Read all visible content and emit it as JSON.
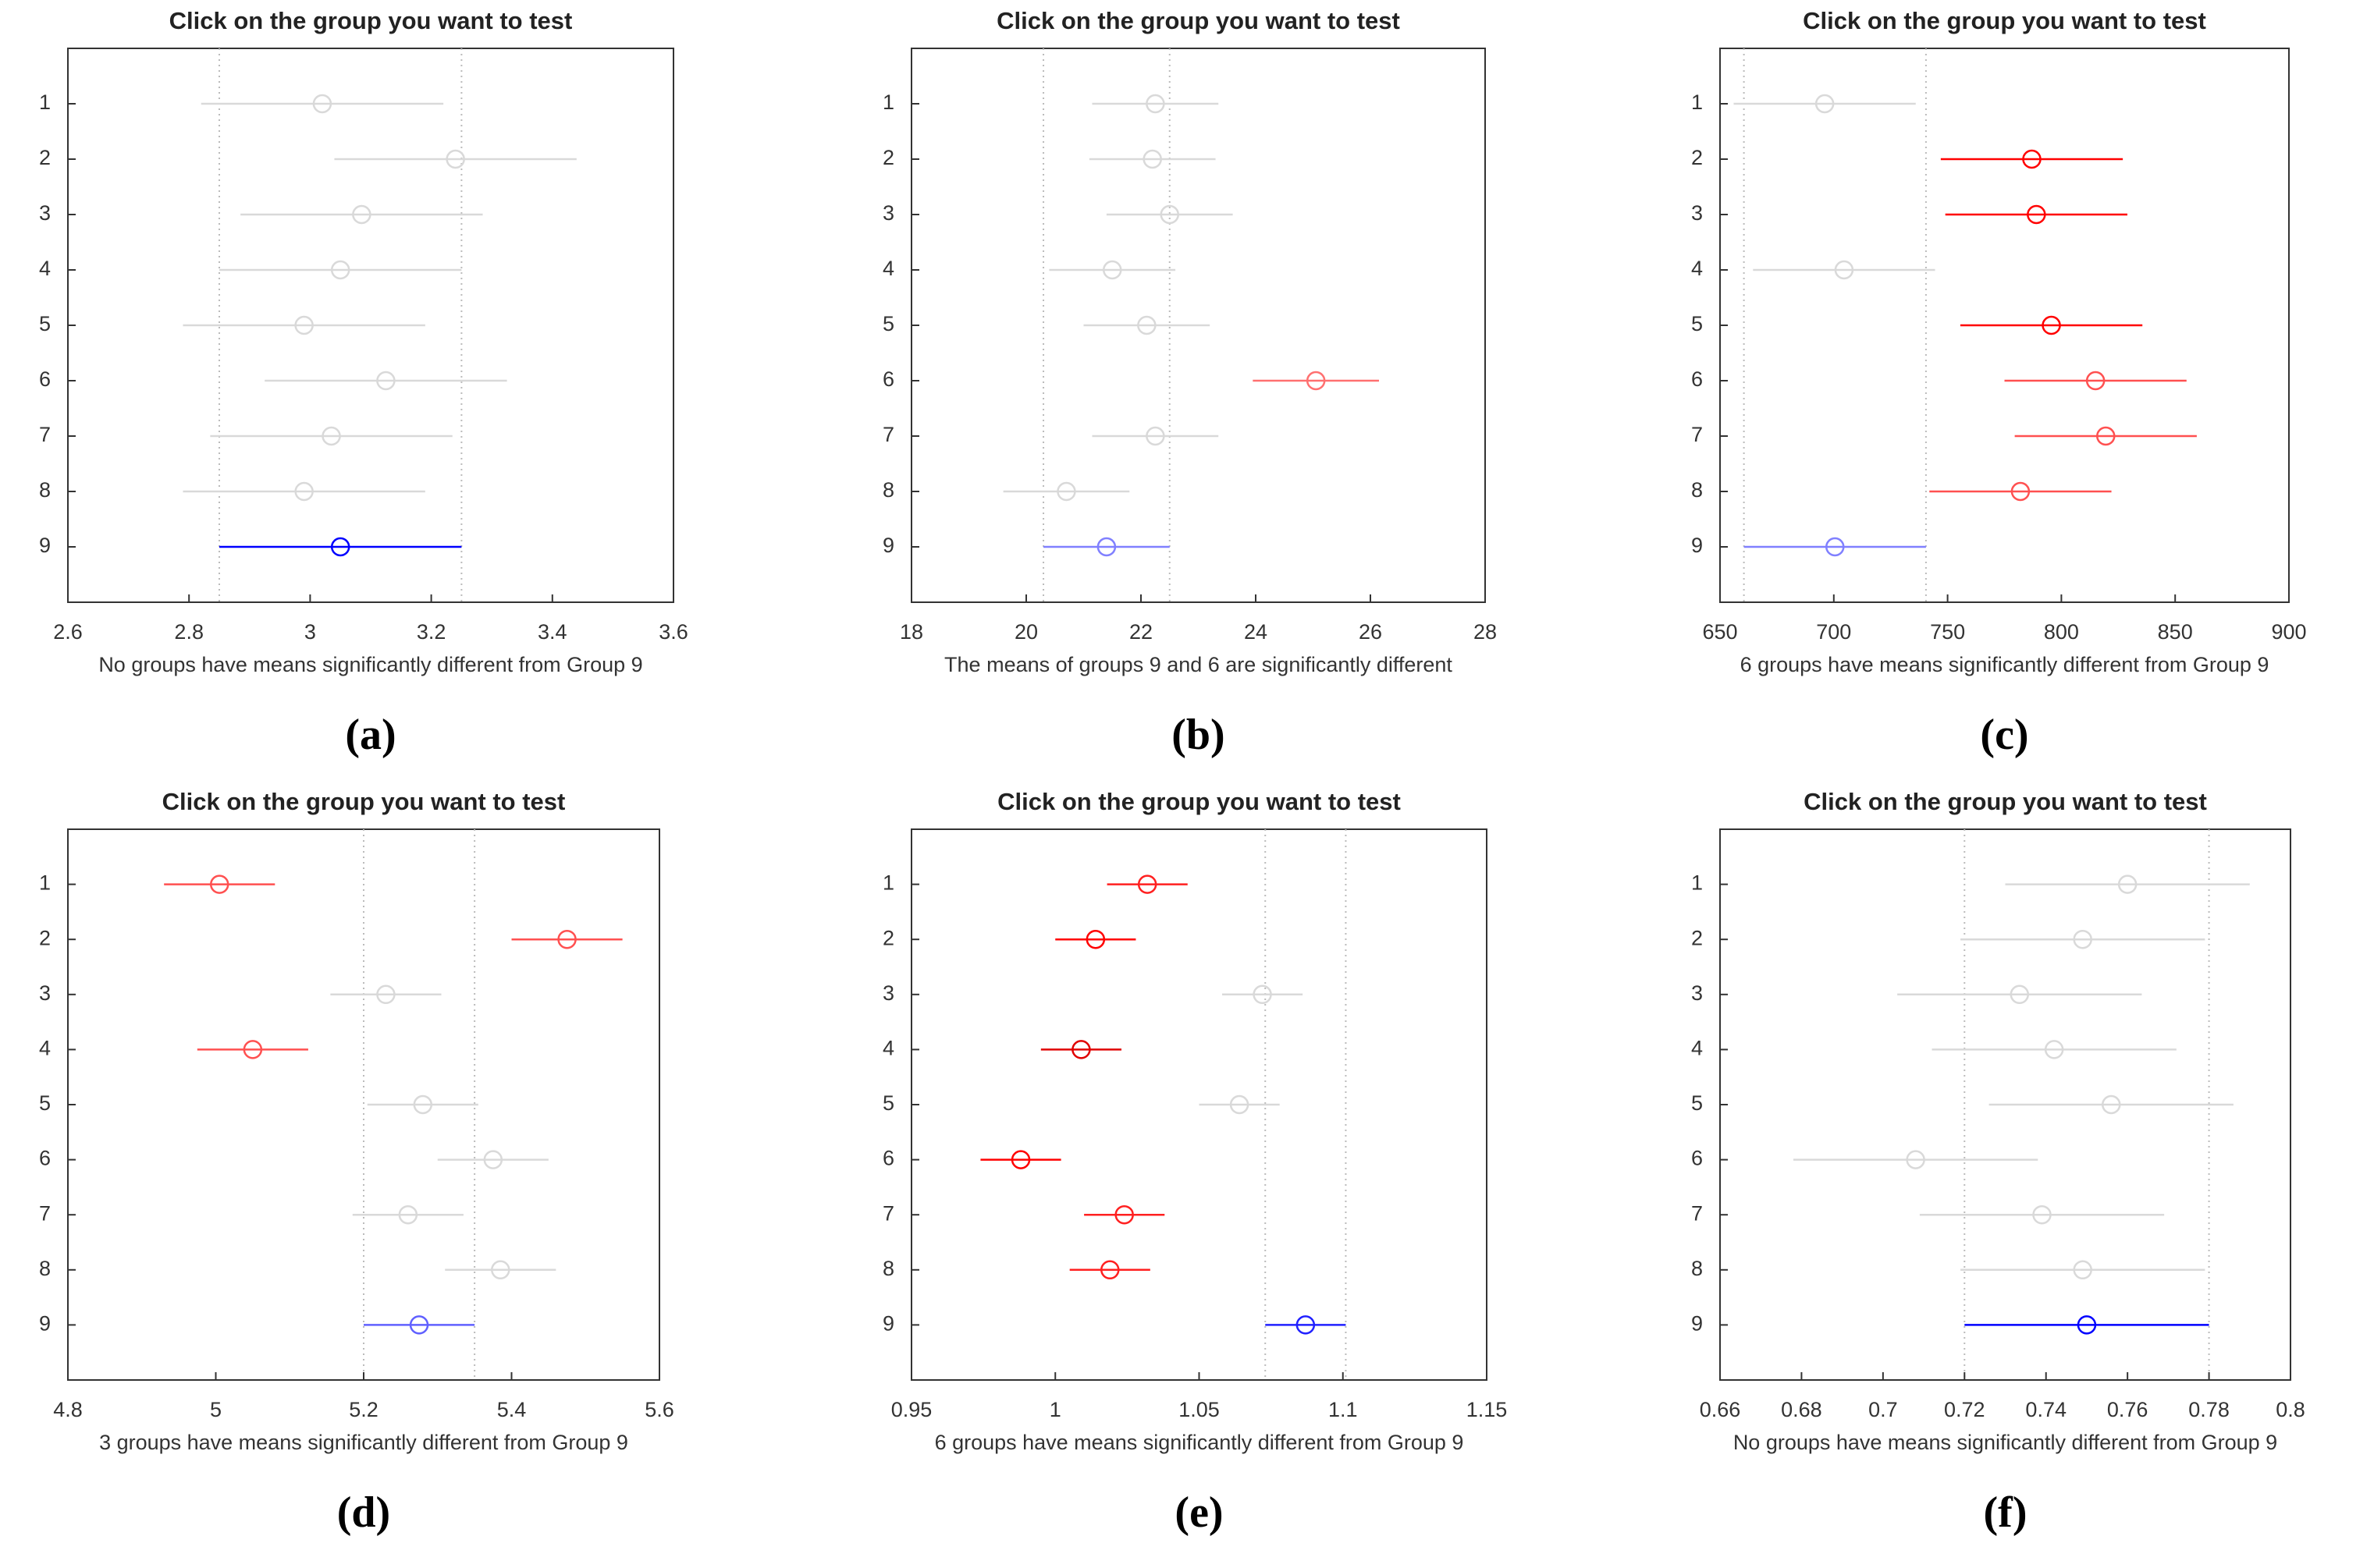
{
  "chart_data": [
    {
      "type": "interval",
      "title": "Click on the group you want to test",
      "xlabel": "No groups have means significantly different from Group 9",
      "label": "(a)",
      "categories": [
        "1",
        "2",
        "3",
        "4",
        "5",
        "6",
        "7",
        "8",
        "9"
      ],
      "values": [
        3.02,
        3.24,
        3.085,
        3.05,
        2.99,
        3.125,
        3.035,
        2.99,
        3.05
      ],
      "errors": [
        0.2,
        0.2,
        0.2,
        0.2,
        0.2,
        0.2,
        0.2,
        0.2,
        0.2
      ],
      "colors": [
        "#d9d9d9",
        "#d9d9d9",
        "#d9d9d9",
        "#d9d9d9",
        "#d9d9d9",
        "#d9d9d9",
        "#d9d9d9",
        "#d9d9d9",
        "#0000ff"
      ],
      "xlim": [
        2.6,
        3.6
      ],
      "xticks": [
        2.6,
        2.8,
        3,
        3.2,
        3.4,
        3.6
      ]
    },
    {
      "type": "interval",
      "title": "Click on the group you want to test",
      "xlabel": "The means of groups 9 and 6 are significantly different",
      "label": "(b)",
      "categories": [
        "1",
        "2",
        "3",
        "4",
        "5",
        "6",
        "7",
        "8",
        "9"
      ],
      "values": [
        22.25,
        22.2,
        22.5,
        21.5,
        22.1,
        25.05,
        22.25,
        20.7,
        21.4
      ],
      "errors": [
        1.1,
        1.1,
        1.1,
        1.1,
        1.1,
        1.1,
        1.1,
        1.1,
        1.1
      ],
      "colors": [
        "#d9d9d9",
        "#d9d9d9",
        "#d9d9d9",
        "#d9d9d9",
        "#d9d9d9",
        "#ff7070",
        "#d9d9d9",
        "#d9d9d9",
        "#8080ff"
      ],
      "xlim": [
        18,
        28
      ],
      "xticks": [
        18,
        20,
        22,
        24,
        26,
        28
      ]
    },
    {
      "type": "interval",
      "title": "Click on the group you want to test",
      "xlabel": "6 groups have means significantly different from Group 9",
      "label": "(c)",
      "categories": [
        "1",
        "2",
        "3",
        "4",
        "5",
        "6",
        "7",
        "8",
        "9"
      ],
      "values": [
        696,
        787,
        789,
        704.5,
        795.6,
        815,
        819.5,
        782,
        700.5
      ],
      "errors": [
        40,
        40,
        40,
        40,
        40,
        40,
        40,
        40,
        40
      ],
      "colors": [
        "#d9d9d9",
        "#ff0000",
        "#ff0000",
        "#d9d9d9",
        "#ff0000",
        "#ff5050",
        "#ff5050",
        "#ff5050",
        "#8080ff"
      ],
      "xlim": [
        650,
        900
      ],
      "xticks": [
        650,
        700,
        750,
        800,
        850,
        900
      ]
    },
    {
      "type": "interval",
      "title": "Click on the group you want to test",
      "xlabel": "3 groups have means significantly different from Group 9",
      "label": "(d)",
      "categories": [
        "1",
        "2",
        "3",
        "4",
        "5",
        "6",
        "7",
        "8",
        "9"
      ],
      "values": [
        5.005,
        5.475,
        5.23,
        5.05,
        5.28,
        5.375,
        5.26,
        5.385,
        5.275
      ],
      "errors": [
        0.075,
        0.075,
        0.075,
        0.075,
        0.075,
        0.075,
        0.075,
        0.075,
        0.075
      ],
      "colors": [
        "#ff5050",
        "#ff5050",
        "#d9d9d9",
        "#ff5050",
        "#d9d9d9",
        "#d9d9d9",
        "#d9d9d9",
        "#d9d9d9",
        "#6060ff"
      ],
      "xlim": [
        4.8,
        5.6
      ],
      "xticks": [
        4.8,
        5,
        5.2,
        5.4,
        5.6
      ]
    },
    {
      "type": "interval",
      "title": "Click on the group you want to test",
      "xlabel": "6 groups have means significantly different from Group 9",
      "label": "(e)",
      "categories": [
        "1",
        "2",
        "3",
        "4",
        "5",
        "6",
        "7",
        "8",
        "9"
      ],
      "values": [
        1.032,
        1.014,
        1.072,
        1.009,
        1.064,
        0.988,
        1.024,
        1.019,
        1.087
      ],
      "errors": [
        0.014,
        0.014,
        0.014,
        0.014,
        0.014,
        0.014,
        0.014,
        0.014,
        0.014
      ],
      "colors": [
        "#ff2020",
        "#ff0000",
        "#d9d9d9",
        "#e00000",
        "#d9d9d9",
        "#ff0000",
        "#ff2020",
        "#ff2020",
        "#2020ff"
      ],
      "xlim": [
        0.95,
        1.15
      ],
      "xticks": [
        0.95,
        1,
        1.05,
        1.1,
        1.15
      ]
    },
    {
      "type": "interval",
      "title": "Click on the group you want to test",
      "xlabel": "No groups have means significantly different from Group 9",
      "label": "(f)",
      "categories": [
        "1",
        "2",
        "3",
        "4",
        "5",
        "6",
        "7",
        "8",
        "9"
      ],
      "values": [
        0.76,
        0.749,
        0.7335,
        0.742,
        0.756,
        0.708,
        0.739,
        0.749,
        0.75
      ],
      "errors": [
        0.03,
        0.03,
        0.03,
        0.03,
        0.03,
        0.03,
        0.03,
        0.03,
        0.03
      ],
      "colors": [
        "#d9d9d9",
        "#d9d9d9",
        "#d9d9d9",
        "#d9d9d9",
        "#d9d9d9",
        "#d9d9d9",
        "#d9d9d9",
        "#d9d9d9",
        "#0000ff"
      ],
      "xlim": [
        0.66,
        0.8
      ],
      "xticks": [
        0.66,
        0.68,
        0.7,
        0.72,
        0.74,
        0.76,
        0.78,
        0.8
      ]
    }
  ]
}
